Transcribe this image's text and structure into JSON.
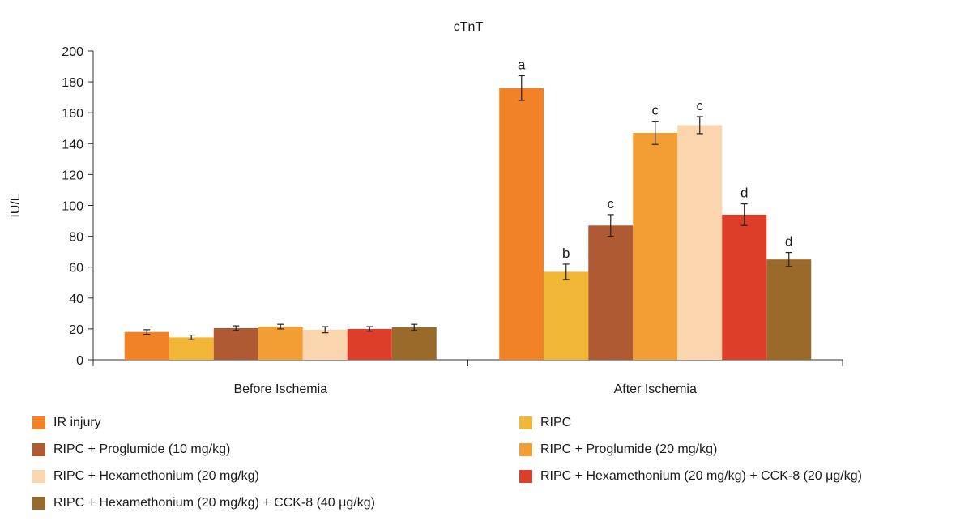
{
  "chart_data": {
    "type": "bar",
    "title": "cTnT",
    "ylabel": "IU/L",
    "xlabel": "",
    "ylim": [
      0,
      200
    ],
    "yticks": [
      0,
      20,
      40,
      60,
      80,
      100,
      120,
      140,
      160,
      180,
      200
    ],
    "categories": [
      "Before Ischemia",
      "After Ischemia"
    ],
    "grid": false,
    "legend_position": "bottom",
    "series": [
      {
        "name": "IR injury",
        "color": "#F28227",
        "values": [
          18,
          176
        ],
        "errors": [
          1.5,
          8
        ],
        "labels": [
          "",
          "a"
        ]
      },
      {
        "name": "RIPC",
        "color": "#F2B636",
        "values": [
          14.5,
          57
        ],
        "errors": [
          1.5,
          5
        ],
        "labels": [
          "",
          "b"
        ]
      },
      {
        "name": "RIPC + Proglumide (10 mg/kg)",
        "color": "#B05A34",
        "values": [
          20.5,
          87
        ],
        "errors": [
          1.5,
          7
        ],
        "labels": [
          "",
          "c"
        ]
      },
      {
        "name": "RIPC + Proglumide (20 mg/kg)",
        "color": "#F29E35",
        "values": [
          21.5,
          147
        ],
        "errors": [
          1.5,
          7.5
        ],
        "labels": [
          "",
          "c"
        ]
      },
      {
        "name": "RIPC + Hexamethonium (20 mg/kg)",
        "color": "#FBD5AE",
        "values": [
          19.5,
          152
        ],
        "errors": [
          2,
          5.5
        ],
        "labels": [
          "",
          "c"
        ]
      },
      {
        "name": "RIPC + Hexamethonium (20 mg/kg) + CCK-8 (20 μg/kg)",
        "color": "#DC3E2A",
        "values": [
          20,
          94
        ],
        "errors": [
          1.5,
          7
        ],
        "labels": [
          "",
          "d"
        ]
      },
      {
        "name": "RIPC + Hexamethonium (20 mg/kg) + CCK-8 (40 μg/kg)",
        "color": "#9A6A2A",
        "values": [
          21,
          65
        ],
        "errors": [
          2,
          4.5
        ],
        "labels": [
          "",
          "d"
        ]
      }
    ]
  }
}
